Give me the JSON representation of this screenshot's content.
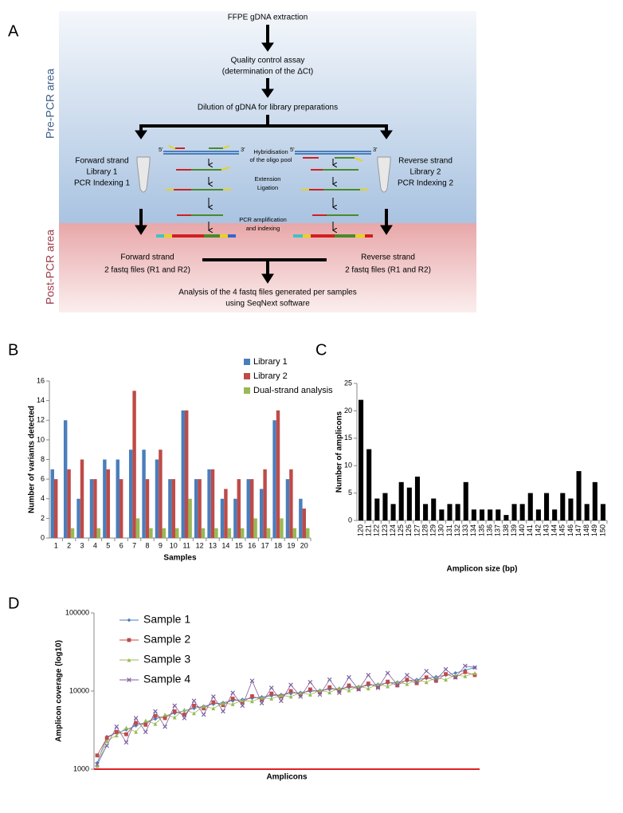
{
  "panel_labels": [
    "A",
    "B",
    "C",
    "D"
  ],
  "diagram": {
    "areas": [
      "Pre-PCR area",
      "Post-PCR area"
    ],
    "steps": [
      "FFPE gDNA extraction",
      "Quality control assay",
      "(determination of the ΔCt)",
      "Dilution of gDNA for library preparations"
    ],
    "forward": [
      "Forward strand",
      "Library 1",
      "PCR Indexing  1"
    ],
    "reverse": [
      "Reverse strand",
      "Library 2",
      "PCR Indexing  2"
    ],
    "primes": [
      "5'",
      "3'"
    ],
    "process": [
      "Hybridisation",
      "of the oligo pool",
      "Extension",
      "Ligation",
      "PCR amplification",
      "and indexing"
    ],
    "forward_output": [
      "Forward strand",
      "2 fastq files (R1 and R2)"
    ],
    "reverse_output": [
      "Reverse strand",
      "2 fastq files (R1 and R2)"
    ],
    "analysis": [
      "Analysis of the 4 fastq files generated per samples",
      "using SeqNext software"
    ]
  },
  "chart_data": [
    {
      "type": "bar",
      "y_label": "Number of variants detected",
      "x_label": "Samples",
      "categories": [
        "1",
        "2",
        "3",
        "4",
        "5",
        "6",
        "7",
        "8",
        "9",
        "10",
        "11",
        "12",
        "13",
        "14",
        "15",
        "16",
        "17",
        "18",
        "19",
        "20"
      ],
      "series": [
        {
          "name": "Library 1",
          "color": "#4a7ebb",
          "values": [
            7,
            12,
            4,
            6,
            8,
            8,
            9,
            9,
            8,
            6,
            13,
            6,
            7,
            4,
            4,
            6,
            5,
            12,
            6,
            4
          ]
        },
        {
          "name": "Library 2",
          "color": "#be4b48",
          "values": [
            6,
            7,
            8,
            6,
            7,
            6,
            15,
            6,
            9,
            6,
            13,
            6,
            7,
            5,
            6,
            6,
            7,
            13,
            7,
            3
          ]
        },
        {
          "name": "Dual-strand analysis",
          "color": "#98b954",
          "values": [
            0,
            1,
            0,
            1,
            0,
            0,
            2,
            1,
            1,
            1,
            4,
            1,
            1,
            1,
            1,
            2,
            1,
            2,
            1,
            1
          ]
        }
      ],
      "ylim": [
        0,
        16
      ],
      "yticks": [
        0,
        2,
        4,
        6,
        8,
        10,
        12,
        14,
        16
      ],
      "legend": "top-right"
    },
    {
      "type": "bar",
      "y_label": "Number of amplicons",
      "x_label": "Amplicon size (bp)",
      "categories": [
        "120",
        "121",
        "122",
        "123",
        "124",
        "125",
        "126",
        "127",
        "128",
        "129",
        "130",
        "131",
        "132",
        "133",
        "134",
        "135",
        "136",
        "137",
        "138",
        "139",
        "140",
        "141",
        "142",
        "143",
        "144",
        "145",
        "146",
        "147",
        "148",
        "149",
        "150"
      ],
      "values": [
        22,
        13,
        4,
        5,
        3,
        7,
        6,
        8,
        3,
        4,
        2,
        3,
        3,
        7,
        2,
        2,
        2,
        2,
        1,
        3,
        3,
        5,
        2,
        5,
        2,
        5,
        4,
        9,
        3,
        7,
        3
      ],
      "color": "#000000",
      "ylim": [
        0,
        25
      ],
      "yticks": [
        0,
        5,
        10,
        15,
        20,
        25
      ]
    },
    {
      "type": "line",
      "y_label": "Amplicon coverage (log10)",
      "x_label": "Amplicons",
      "log_scale": true,
      "series": [
        {
          "name": "Sample 1",
          "color": "#4a7ebb",
          "marker": "diamond",
          "values": [
            1200,
            2600,
            2900,
            3200,
            3600,
            4000,
            4400,
            4800,
            5200,
            5600,
            6000,
            6400,
            6800,
            7100,
            7500,
            7800,
            8100,
            8400,
            8700,
            9000,
            9300,
            9600,
            9900,
            10200,
            10500,
            10800,
            11100,
            11400,
            11800,
            12200,
            12600,
            13000,
            13500,
            14000,
            14600,
            15200,
            16000,
            17000,
            18500,
            20000
          ]
        },
        {
          "name": "Sample 2",
          "color": "#be4b48",
          "marker": "square",
          "values": [
            1500,
            2500,
            3000,
            2800,
            3900,
            3700,
            4800,
            4500,
            5500,
            5000,
            6500,
            6000,
            7200,
            6600,
            8000,
            7200,
            8600,
            7800,
            9300,
            8500,
            10000,
            9000,
            10500,
            9600,
            11200,
            10000,
            11800,
            10600,
            12500,
            11200,
            13200,
            11800,
            14000,
            12600,
            15000,
            13500,
            16500,
            15000,
            17500,
            16000
          ]
        },
        {
          "name": "Sample 3",
          "color": "#98b954",
          "marker": "triangle",
          "values": [
            1100,
            2300,
            2700,
            3400,
            3000,
            4200,
            3800,
            5000,
            4600,
            5800,
            5200,
            6400,
            6000,
            7000,
            6800,
            7600,
            7400,
            8200,
            8000,
            8800,
            8500,
            9500,
            9000,
            10200,
            9600,
            10900,
            10200,
            11500,
            10800,
            12200,
            11500,
            13000,
            12300,
            13800,
            13000,
            14800,
            14000,
            16000,
            15500,
            17000
          ]
        },
        {
          "name": "Sample 4",
          "color": "#7d60a0",
          "marker": "x",
          "values": [
            1150,
            2000,
            3500,
            2200,
            4500,
            3000,
            5500,
            3500,
            6500,
            4500,
            7500,
            5000,
            8500,
            5500,
            9500,
            6500,
            13500,
            7000,
            11000,
            7500,
            12000,
            8500,
            13000,
            9000,
            14000,
            9500,
            15000,
            10500,
            16000,
            11000,
            17000,
            12000,
            16000,
            13000,
            18000,
            14000,
            19000,
            15000,
            21000,
            20000
          ]
        }
      ],
      "ylim": [
        1000,
        100000
      ],
      "yticks": [
        1000,
        10000,
        100000
      ],
      "legend": "top-left"
    }
  ]
}
